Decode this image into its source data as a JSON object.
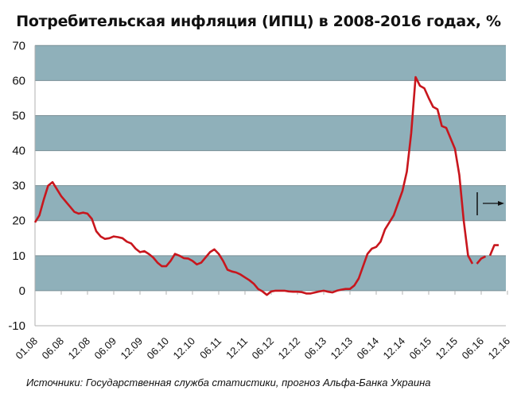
{
  "chart_data": {
    "type": "line",
    "title": "Потребительская инфляция (ИПЦ) в 2008-2016 годах, %",
    "xlabel": "",
    "ylabel": "",
    "ylim": [
      -10,
      70
    ],
    "yticks": [
      -10,
      0,
      10,
      20,
      30,
      40,
      50,
      60,
      70
    ],
    "xtick_labels": [
      "01.08",
      "06.08",
      "12.08",
      "06.09",
      "12.09",
      "06.10",
      "12.10",
      "06.11",
      "12.11",
      "06.12",
      "12.12",
      "06.13",
      "12.13",
      "06.14",
      "12.14",
      "06.15",
      "12.15",
      "06.16",
      "12.16"
    ],
    "grid": "alternating horizontal bands",
    "band_color": "#8fb0ba",
    "line_color": "#c8161d",
    "forecast_marker": "vertical bar with right arrow",
    "series": [
      {
        "segment": "actual",
        "start": "01.08",
        "values": [
          19.5,
          21.5,
          26,
          30,
          31,
          29,
          27,
          25.5,
          24,
          22.5,
          22,
          22.3,
          22,
          20.5,
          17,
          15.5,
          14.8,
          15,
          15.5,
          15.3,
          15,
          14,
          13.5,
          12,
          11,
          11.3,
          10.5,
          9.5,
          8,
          7,
          7,
          8.5,
          10.5,
          10,
          9.3,
          9.2,
          8.5,
          7.5,
          8,
          9.5,
          11,
          11.8,
          10.5,
          8.5,
          6,
          5.5,
          5.2,
          4.6,
          3.8,
          3,
          2,
          0.5,
          -0.2,
          -1.2,
          -0.2,
          0,
          0,
          0,
          -0.2,
          -0.3,
          -0.3,
          -0.4,
          -0.8,
          -0.8,
          -0.5,
          -0.2,
          0,
          -0.3,
          -0.5,
          0,
          0.3,
          0.5,
          0.5,
          1.5,
          3.5,
          7,
          10.5,
          12,
          12.5,
          14,
          17.5,
          19.5,
          21.5,
          25,
          28.5,
          34,
          45,
          61,
          58.5,
          57.8,
          55,
          52.5,
          51.8,
          47,
          46.5,
          43.5,
          40.5,
          33,
          20,
          10,
          7.7
        ]
      },
      {
        "segment": "forecast-1",
        "start_index": 101,
        "values": [
          7.7,
          9.2,
          9.8
        ]
      },
      {
        "segment": "forecast-2",
        "start_index": 104,
        "values": [
          10,
          13,
          13
        ]
      }
    ]
  },
  "source": "Источники: Государственная служба статистики, прогноз Альфа-Банка Украина"
}
